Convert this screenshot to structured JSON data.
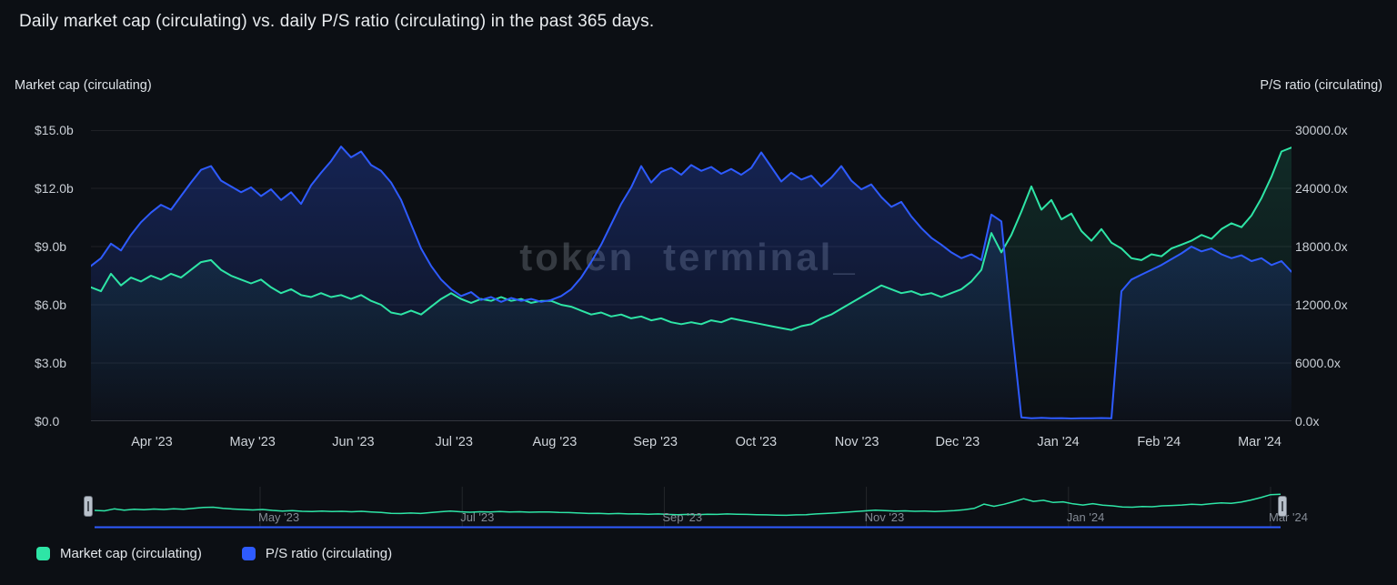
{
  "title": "Daily market cap (circulating) vs. daily P/S ratio (circulating) in the past 365 days.",
  "watermark": "token terminal_",
  "axes": {
    "left_title": "Market cap (circulating)",
    "right_title": "P/S ratio (circulating)",
    "left_ticks": [
      "$15.0b",
      "$12.0b",
      "$9.0b",
      "$6.0b",
      "$3.0b",
      "$0.0"
    ],
    "right_ticks": [
      "30000.0x",
      "24000.0x",
      "18000.0x",
      "12000.0x",
      "6000.0x",
      "0.0x"
    ],
    "x_ticks": [
      "Apr '23",
      "May '23",
      "Jun '23",
      "Jul '23",
      "Aug '23",
      "Sep '23",
      "Oct '23",
      "Nov '23",
      "Dec '23",
      "Jan '24",
      "Feb '24",
      "Mar '24"
    ]
  },
  "navigator": {
    "x_ticks": [
      "May '23",
      "Jul '23",
      "Sep '23",
      "Nov '23",
      "Jan '24",
      "Mar '24"
    ]
  },
  "legend": [
    {
      "label": "Market cap (circulating)",
      "color": "#2ee5a6"
    },
    {
      "label": "P/S ratio (circulating)",
      "color": "#2e5bff"
    }
  ],
  "colors": {
    "background": "#0c0f14",
    "marketcap_green": "#2ee5a6",
    "ps_blue": "#2e5bff",
    "grid": "rgba(255,255,255,0.08)",
    "grid_bottom": "rgba(255,255,255,0.16)"
  },
  "chart_data": {
    "type": "line",
    "title": "Daily market cap (circulating) vs. daily P/S ratio (circulating) in the past 365 days.",
    "x_description": "365 days spanning Apr '23 through Mar '24, ~121 evenly spaced samples per series",
    "x_tick_labels": [
      "Apr '23",
      "May '23",
      "Jun '23",
      "Jul '23",
      "Aug '23",
      "Sep '23",
      "Oct '23",
      "Nov '23",
      "Dec '23",
      "Jan '24",
      "Feb '24",
      "Mar '24"
    ],
    "grid": "horizontal-only",
    "legend_position": "bottom-left",
    "series": [
      {
        "name": "Market cap (circulating)",
        "axis": "left",
        "unit": "USD billions",
        "ylim": [
          0,
          15
        ],
        "color": "#2ee5a6",
        "values": [
          6.9,
          6.7,
          7.6,
          7.0,
          7.4,
          7.2,
          7.5,
          7.3,
          7.6,
          7.4,
          7.8,
          8.2,
          8.3,
          7.8,
          7.5,
          7.3,
          7.1,
          7.3,
          6.9,
          6.6,
          6.8,
          6.5,
          6.4,
          6.6,
          6.4,
          6.5,
          6.3,
          6.5,
          6.2,
          6.0,
          5.6,
          5.5,
          5.7,
          5.5,
          5.9,
          6.3,
          6.6,
          6.3,
          6.1,
          6.3,
          6.2,
          6.4,
          6.2,
          6.3,
          6.1,
          6.2,
          6.2,
          6.0,
          5.9,
          5.7,
          5.5,
          5.6,
          5.4,
          5.5,
          5.3,
          5.4,
          5.2,
          5.3,
          5.1,
          5.0,
          5.1,
          5.0,
          5.2,
          5.1,
          5.3,
          5.2,
          5.1,
          5.0,
          4.9,
          4.8,
          4.7,
          4.9,
          5.0,
          5.3,
          5.5,
          5.8,
          6.1,
          6.4,
          6.7,
          7.0,
          6.8,
          6.6,
          6.7,
          6.5,
          6.6,
          6.4,
          6.6,
          6.8,
          7.2,
          7.8,
          9.7,
          8.7,
          9.6,
          10.8,
          12.1,
          10.9,
          11.4,
          10.4,
          10.7,
          9.8,
          9.3,
          9.9,
          9.2,
          8.9,
          8.4,
          8.3,
          8.6,
          8.5,
          8.9,
          9.1,
          9.3,
          9.6,
          9.4,
          9.9,
          10.2,
          10.0,
          10.6,
          11.5,
          12.6,
          13.9,
          14.1
        ]
      },
      {
        "name": "P/S ratio (circulating)",
        "axis": "right",
        "unit": "x",
        "ylim": [
          0,
          30000
        ],
        "color": "#2e5bff",
        "values": [
          16000,
          16800,
          18300,
          17600,
          19200,
          20500,
          21500,
          22300,
          21800,
          23200,
          24600,
          25900,
          26300,
          24800,
          24200,
          23600,
          24100,
          23200,
          23900,
          22800,
          23600,
          22400,
          24300,
          25600,
          26800,
          28300,
          27200,
          27800,
          26400,
          25800,
          24600,
          22800,
          20300,
          17800,
          16000,
          14600,
          13600,
          12900,
          13300,
          12500,
          12800,
          12300,
          12700,
          12400,
          12600,
          12300,
          12500,
          12900,
          13600,
          14800,
          16400,
          18200,
          20300,
          22400,
          24100,
          26300,
          24600,
          25700,
          26100,
          25400,
          26400,
          25800,
          26200,
          25500,
          26000,
          25400,
          26100,
          27700,
          26200,
          24700,
          25600,
          24900,
          25300,
          24200,
          25100,
          26300,
          24800,
          23900,
          24400,
          23100,
          22100,
          22600,
          21100,
          19900,
          18900,
          18200,
          17400,
          16800,
          17200,
          16600,
          21300,
          20600,
          10100,
          400,
          300,
          350,
          300,
          320,
          280,
          310,
          300,
          330,
          300,
          13400,
          14600,
          15100,
          15600,
          16100,
          16700,
          17300,
          18000,
          17500,
          17800,
          17200,
          16800,
          17100,
          16500,
          16800,
          16100,
          16500,
          15400
        ]
      }
    ]
  }
}
